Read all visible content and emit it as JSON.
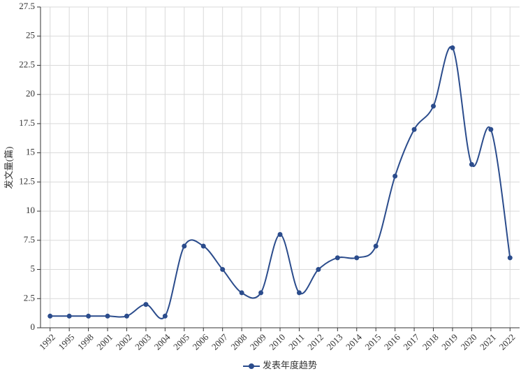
{
  "chart_data": {
    "type": "line",
    "y_label": "发文量(篇)",
    "categories": [
      "1992",
      "1995",
      "1998",
      "2001",
      "2002",
      "2003",
      "2004",
      "2005",
      "2006",
      "2007",
      "2008",
      "2009",
      "2010",
      "2011",
      "2012",
      "2013",
      "2014",
      "2015",
      "2016",
      "2017",
      "2018",
      "2019",
      "2020",
      "2021",
      "2022"
    ],
    "series": [
      {
        "name": "发表年度趋势",
        "color": "#2b4c8c",
        "values": [
          1,
          1,
          1,
          1,
          1,
          2,
          1,
          7,
          7,
          5,
          3,
          3,
          8,
          3,
          5,
          6,
          6,
          7,
          13,
          17,
          19,
          24,
          14,
          17,
          6
        ]
      }
    ],
    "ylim": [
      0,
      27.5
    ],
    "yticks": [
      0,
      2.5,
      5,
      7.5,
      10,
      12.5,
      15,
      17.5,
      20,
      22.5,
      25,
      27.5
    ],
    "grid": true,
    "smooth": true,
    "legend": "bottom"
  }
}
